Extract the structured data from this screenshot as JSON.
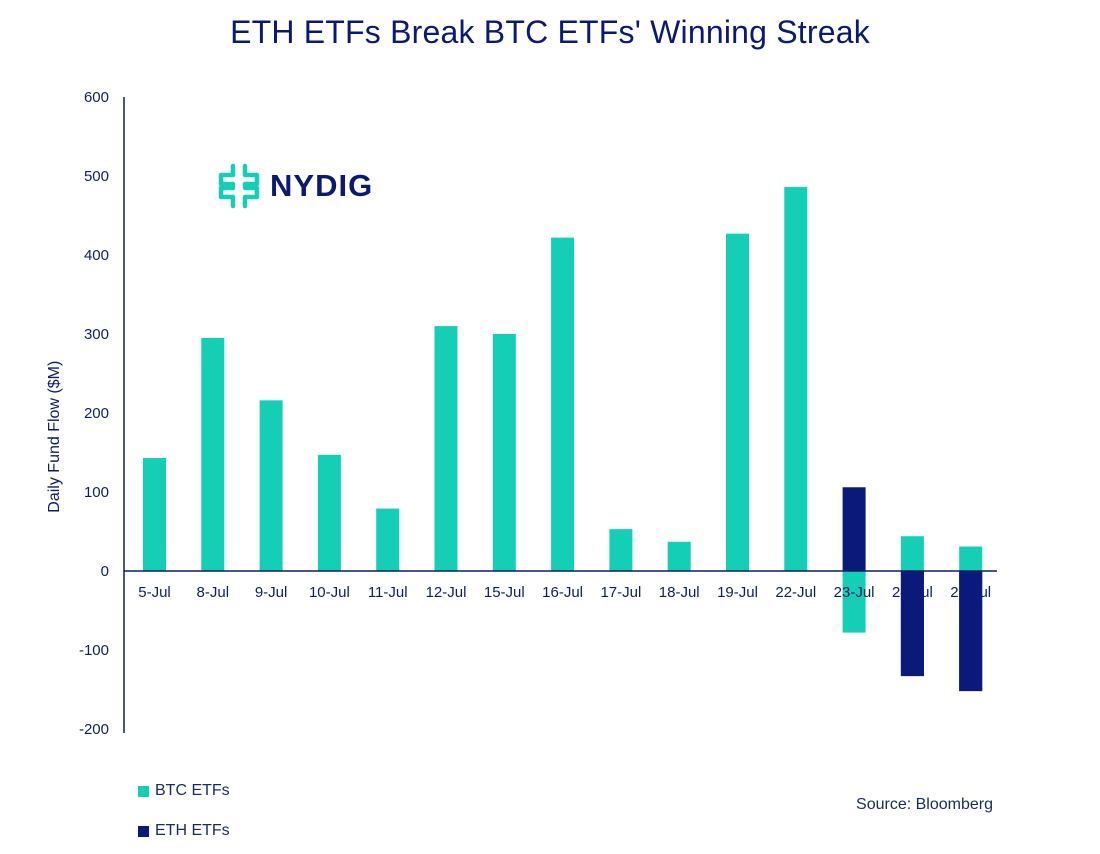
{
  "colors": {
    "btc": "#14cfb5",
    "eth": "#0b1a7a",
    "axis": "#0f1f5c",
    "title": "#0b1a6e"
  },
  "logo": {
    "text": "NYDIG",
    "icon": "nydig-logo-icon",
    "icon_color": "#14cfb5",
    "text_color": "#0b1a6e"
  },
  "source": "Source: Bloomberg",
  "chart_data": {
    "type": "bar",
    "title": "ETH ETFs Break BTC ETFs' Winning Streak",
    "xlabel": "",
    "ylabel": "Daily Fund Flow ($M)",
    "ylim": [
      -200,
      600
    ],
    "yticks": [
      600,
      500,
      400,
      300,
      200,
      100,
      0,
      -100,
      -200
    ],
    "categories": [
      "5-Jul",
      "8-Jul",
      "9-Jul",
      "10-Jul",
      "11-Jul",
      "12-Jul",
      "15-Jul",
      "16-Jul",
      "17-Jul",
      "18-Jul",
      "19-Jul",
      "22-Jul",
      "23-Jul",
      "24-Jul",
      "25-Jul"
    ],
    "series": [
      {
        "name": "BTC ETFs",
        "values": [
          143,
          295,
          216,
          147,
          79,
          310,
          300,
          422,
          53,
          37,
          427,
          486,
          -78,
          44,
          31
        ]
      },
      {
        "name": "ETH ETFs",
        "values": [
          null,
          null,
          null,
          null,
          null,
          null,
          null,
          null,
          null,
          null,
          null,
          null,
          106,
          -133,
          -152
        ]
      }
    ],
    "legend_position": "bottom-left",
    "grid": false
  }
}
